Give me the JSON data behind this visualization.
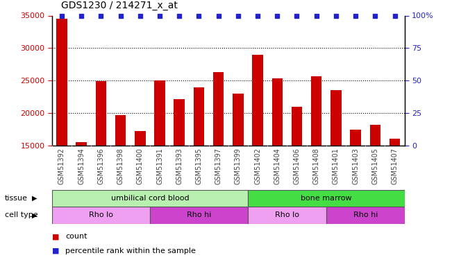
{
  "title": "GDS1230 / 214271_x_at",
  "samples": [
    "GSM51392",
    "GSM51394",
    "GSM51396",
    "GSM51398",
    "GSM51400",
    "GSM51391",
    "GSM51393",
    "GSM51395",
    "GSM51397",
    "GSM51399",
    "GSM51402",
    "GSM51404",
    "GSM51406",
    "GSM51408",
    "GSM51401",
    "GSM51403",
    "GSM51405",
    "GSM51407"
  ],
  "counts": [
    34500,
    15500,
    24900,
    19700,
    17200,
    25000,
    22200,
    24000,
    26300,
    23000,
    29000,
    25300,
    21000,
    25700,
    23500,
    17500,
    18200,
    16100
  ],
  "bar_color": "#cc0000",
  "percentile_color": "#2222cc",
  "ymin": 15000,
  "ymax": 35000,
  "yticks": [
    15000,
    20000,
    25000,
    30000,
    35000
  ],
  "y2ticks": [
    0,
    25,
    50,
    75,
    100
  ],
  "grid_yticks": [
    20000,
    25000,
    30000
  ],
  "tissue_groups": [
    {
      "label": "umbilical cord blood",
      "start": 0,
      "end": 10,
      "color": "#b8f0b0"
    },
    {
      "label": "bone marrow",
      "start": 10,
      "end": 18,
      "color": "#44dd44"
    }
  ],
  "cell_type_groups": [
    {
      "label": "Rho lo",
      "start": 0,
      "end": 5,
      "color": "#f0a0f0"
    },
    {
      "label": "Rho hi",
      "start": 5,
      "end": 10,
      "color": "#cc44cc"
    },
    {
      "label": "Rho lo",
      "start": 10,
      "end": 14,
      "color": "#f0a0f0"
    },
    {
      "label": "Rho hi",
      "start": 14,
      "end": 18,
      "color": "#cc44cc"
    }
  ],
  "legend_count_color": "#cc0000",
  "legend_pct_color": "#2222cc",
  "bg_color": "#ffffff",
  "xlabel_color": "#444444",
  "ylabel_color": "#cc0000",
  "y2label_color": "#2222cc",
  "xtick_bg_color": "#cccccc",
  "bar_width": 0.55
}
